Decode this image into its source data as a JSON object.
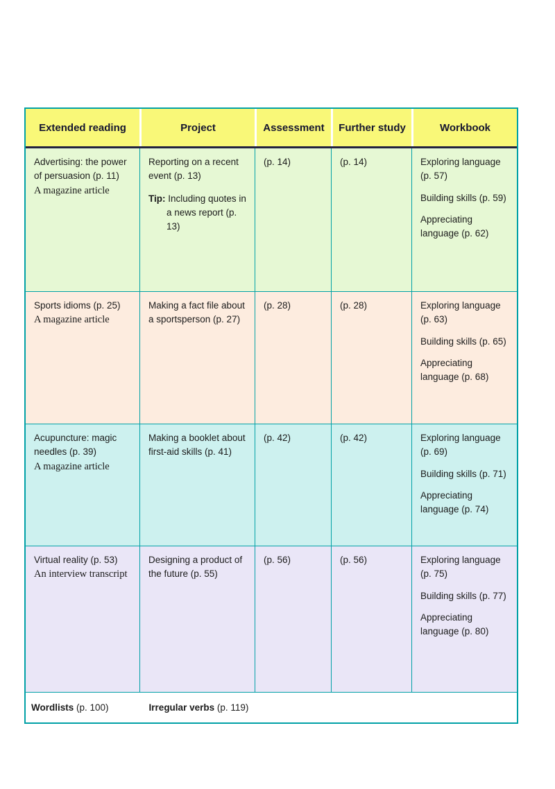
{
  "colors": {
    "border": "#00a0a6",
    "header-bg": "#f9f878",
    "header-line": "#22223f",
    "row-green": "#e6f8d4",
    "row-pink": "#fdecdf",
    "row-cyan": "#cdf1ef",
    "row-lavender": "#eae6f7"
  },
  "header": {
    "columns": [
      "Extended reading",
      "Project",
      "Assessment",
      "Further study",
      "Workbook"
    ]
  },
  "rows": [
    {
      "extended_reading": {
        "title": "Advertising: the power of persuasion (p. 11)",
        "genre": "A magazine article"
      },
      "project": {
        "text": "Reporting on a recent event (p. 13)",
        "tip_label": "Tip:",
        "tip_text": "Including quotes in a news report (p. 13)"
      },
      "assessment": "(p. 14)",
      "further_study": "(p. 14)",
      "workbook": [
        "Exploring language (p. 57)",
        "Building skills (p. 59)",
        "Appreciating language (p. 62)"
      ]
    },
    {
      "extended_reading": {
        "title": "Sports idioms (p. 25)",
        "genre": "A magazine article"
      },
      "project": {
        "text": "Making a fact file about a sportsperson (p. 27)"
      },
      "assessment": "(p. 28)",
      "further_study": "(p. 28)",
      "workbook": [
        "Exploring language (p. 63)",
        "Building skills (p. 65)",
        "Appreciating language (p. 68)"
      ]
    },
    {
      "extended_reading": {
        "title": "Acupuncture: magic needles (p. 39)",
        "genre": "A magazine article"
      },
      "project": {
        "text": "Making a booklet about first-aid skills (p. 41)"
      },
      "assessment": "(p. 42)",
      "further_study": "(p. 42)",
      "workbook": [
        "Exploring language (p. 69)",
        "Building skills (p. 71)",
        "Appreciating language (p. 74)"
      ]
    },
    {
      "extended_reading": {
        "title": "Virtual reality (p. 53)",
        "genre": "An interview transcript"
      },
      "project": {
        "text": "Designing a product of the future (p. 55)"
      },
      "assessment": "(p. 56)",
      "further_study": "(p. 56)",
      "workbook": [
        "Exploring language (p. 75)",
        "Building skills (p. 77)",
        "Appreciating language (p. 80)"
      ]
    }
  ],
  "footer": {
    "wordlists_label": "Wordlists",
    "wordlists_page": " (p. 100)",
    "irregular_label": "Irregular verbs",
    "irregular_page": " (p. 119)"
  }
}
